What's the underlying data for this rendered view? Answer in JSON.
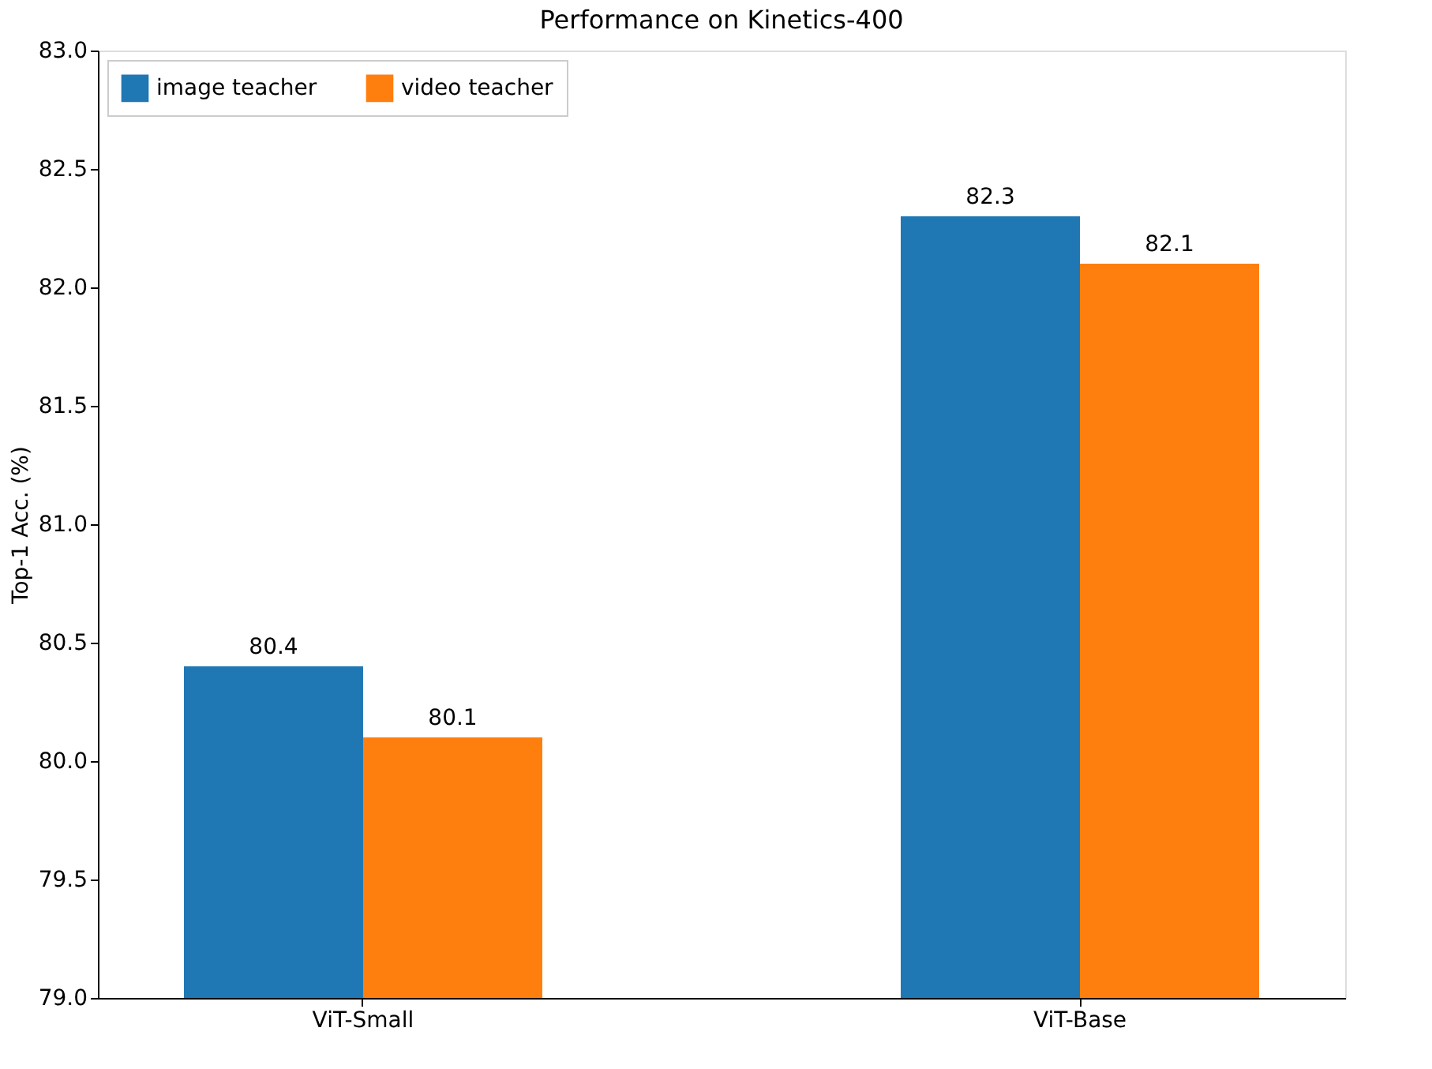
{
  "chart_data": {
    "type": "bar",
    "title": "Performance on Kinetics-400",
    "ylabel": "Top-1 Acc. (%)",
    "categories": [
      "ViT-Small",
      "ViT-Base"
    ],
    "series": [
      {
        "name": "image teacher",
        "color": "#1f77b4",
        "values": [
          80.4,
          82.3
        ]
      },
      {
        "name": "video teacher",
        "color": "#ff7f0e",
        "values": [
          80.1,
          82.1
        ]
      }
    ],
    "ylim": [
      79,
      83
    ],
    "yticks": [
      {
        "value": 79,
        "label": "79.0"
      },
      {
        "value": 79.5,
        "label": "79.5"
      },
      {
        "value": 80,
        "label": "80.0"
      },
      {
        "value": 80.5,
        "label": "80.5"
      },
      {
        "value": 81,
        "label": "81.0"
      },
      {
        "value": 81.5,
        "label": "81.5"
      },
      {
        "value": 82,
        "label": "82.0"
      },
      {
        "value": 82.5,
        "label": "82.5"
      },
      {
        "value": 83,
        "label": "83.0"
      }
    ],
    "data_labels": true,
    "grid": false,
    "legend": "top left"
  }
}
